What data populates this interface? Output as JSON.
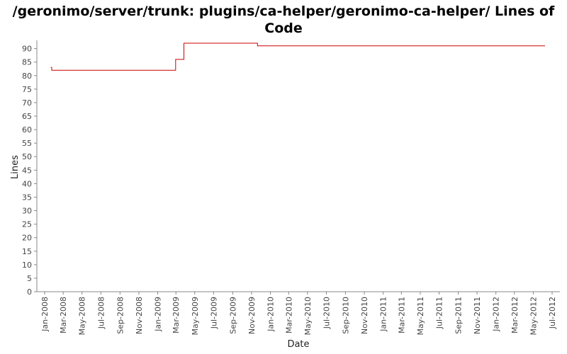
{
  "chart_data": {
    "type": "line",
    "title": "/geronimo/server/trunk: plugins/ca-helper/geronimo-ca-helper/ Lines of Code",
    "xlabel": "Date",
    "ylabel": "Lines",
    "ylim": [
      0,
      92
    ],
    "yticks": [
      0,
      5,
      10,
      15,
      20,
      25,
      30,
      35,
      40,
      45,
      50,
      55,
      60,
      65,
      70,
      75,
      80,
      85,
      90
    ],
    "xlim": [
      "2008-01-01",
      "2012-07-01"
    ],
    "xticks": [
      {
        "date": "2008-01-01",
        "label": "Jan-2008"
      },
      {
        "date": "2008-03-01",
        "label": "Mar-2008"
      },
      {
        "date": "2008-05-01",
        "label": "May-2008"
      },
      {
        "date": "2008-07-01",
        "label": "Jul-2008"
      },
      {
        "date": "2008-09-01",
        "label": "Sep-2008"
      },
      {
        "date": "2008-11-01",
        "label": "Nov-2008"
      },
      {
        "date": "2009-01-01",
        "label": "Jan-2009"
      },
      {
        "date": "2009-03-01",
        "label": "Mar-2009"
      },
      {
        "date": "2009-05-01",
        "label": "May-2009"
      },
      {
        "date": "2009-07-01",
        "label": "Jul-2009"
      },
      {
        "date": "2009-09-01",
        "label": "Sep-2009"
      },
      {
        "date": "2009-11-01",
        "label": "Nov-2009"
      },
      {
        "date": "2010-01-01",
        "label": "Jan-2010"
      },
      {
        "date": "2010-03-01",
        "label": "Mar-2010"
      },
      {
        "date": "2010-05-01",
        "label": "May-2010"
      },
      {
        "date": "2010-07-01",
        "label": "Jul-2010"
      },
      {
        "date": "2010-09-01",
        "label": "Sep-2010"
      },
      {
        "date": "2010-11-01",
        "label": "Nov-2010"
      },
      {
        "date": "2011-01-01",
        "label": "Jan-2011"
      },
      {
        "date": "2011-03-01",
        "label": "Mar-2011"
      },
      {
        "date": "2011-05-01",
        "label": "May-2011"
      },
      {
        "date": "2011-07-01",
        "label": "Jul-2011"
      },
      {
        "date": "2011-09-01",
        "label": "Sep-2011"
      },
      {
        "date": "2011-11-01",
        "label": "Nov-2011"
      },
      {
        "date": "2012-01-01",
        "label": "Jan-2012"
      },
      {
        "date": "2012-03-01",
        "label": "Mar-2012"
      },
      {
        "date": "2012-05-01",
        "label": "May-2012"
      },
      {
        "date": "2012-07-01",
        "label": "Jul-2012"
      }
    ],
    "grid": false,
    "legend": "none",
    "series": [
      {
        "color": "#cc0000",
        "step": true,
        "points": [
          {
            "x": "2008-01-21",
            "y": 83
          },
          {
            "x": "2008-01-24",
            "y": 82
          },
          {
            "x": "2009-02-28",
            "y": 86
          },
          {
            "x": "2009-03-27",
            "y": 92
          },
          {
            "x": "2009-11-20",
            "y": 91
          },
          {
            "x": "2012-06-08",
            "y": 91
          }
        ]
      }
    ]
  }
}
